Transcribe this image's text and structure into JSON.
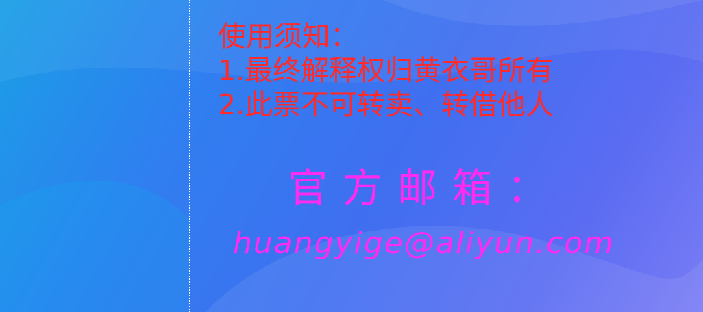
{
  "notice": {
    "heading": "使用须知：",
    "rule_1": "1.最终解释权归黄衣哥所有",
    "rule_2": "2.此票不可转卖、转借他人"
  },
  "contact": {
    "title": "官方邮箱：",
    "email": "huangyige@aliyun.com"
  },
  "colors": {
    "background_start": "#1a9fe6",
    "background_end": "#7a7cf5",
    "notice_text": "#ff2a2a",
    "contact_text": "#ff2bf0",
    "perforation": "#ffffff"
  }
}
